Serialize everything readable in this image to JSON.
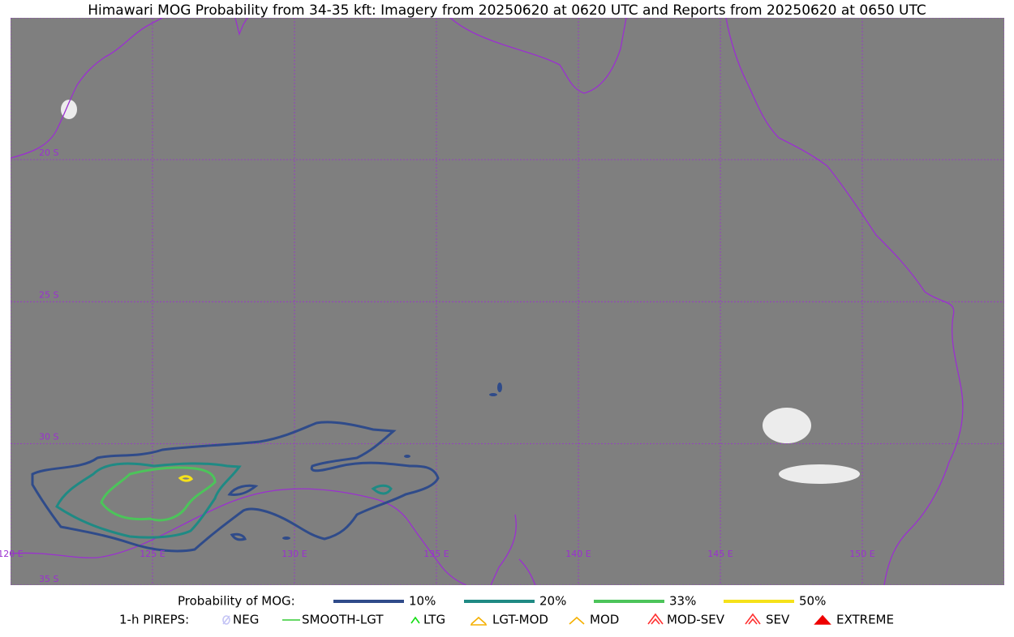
{
  "title": "Himawari MOG Probability from 34-35 kft: Imagery from 20250620 at 0620 UTC and Reports from 20250620 at 0650 UTC",
  "lat_labels": [
    "20 S",
    "25 S",
    "30 S",
    "35 S"
  ],
  "lon_labels": [
    "120 E",
    "125 E",
    "130 E",
    "135 E",
    "140 E",
    "145 E",
    "150 E"
  ],
  "legend": {
    "probability": {
      "label": "Probability of MOG:",
      "items": [
        {
          "label": "10%",
          "color": "#2f4b8a"
        },
        {
          "label": "20%",
          "color": "#1f8a84"
        },
        {
          "label": "33%",
          "color": "#4cc45a"
        },
        {
          "label": "50%",
          "color": "#f5e11a"
        }
      ]
    },
    "pireps": {
      "label": "1-h PIREPS:",
      "items": [
        {
          "label": "NEG",
          "color": "#c4c4f5"
        },
        {
          "label": "SMOOTH-LGT",
          "color": "#33cc33"
        },
        {
          "label": "LTG",
          "color": "#11dd11"
        },
        {
          "label": "LGT-MOD",
          "color": "#f5b000"
        },
        {
          "label": "MOD",
          "color": "#f5b000"
        },
        {
          "label": "MOD-SEV",
          "color": "#ff3030"
        },
        {
          "label": "SEV",
          "color": "#ff3030"
        },
        {
          "label": "EXTREME",
          "color": "#ee0000"
        }
      ]
    }
  }
}
